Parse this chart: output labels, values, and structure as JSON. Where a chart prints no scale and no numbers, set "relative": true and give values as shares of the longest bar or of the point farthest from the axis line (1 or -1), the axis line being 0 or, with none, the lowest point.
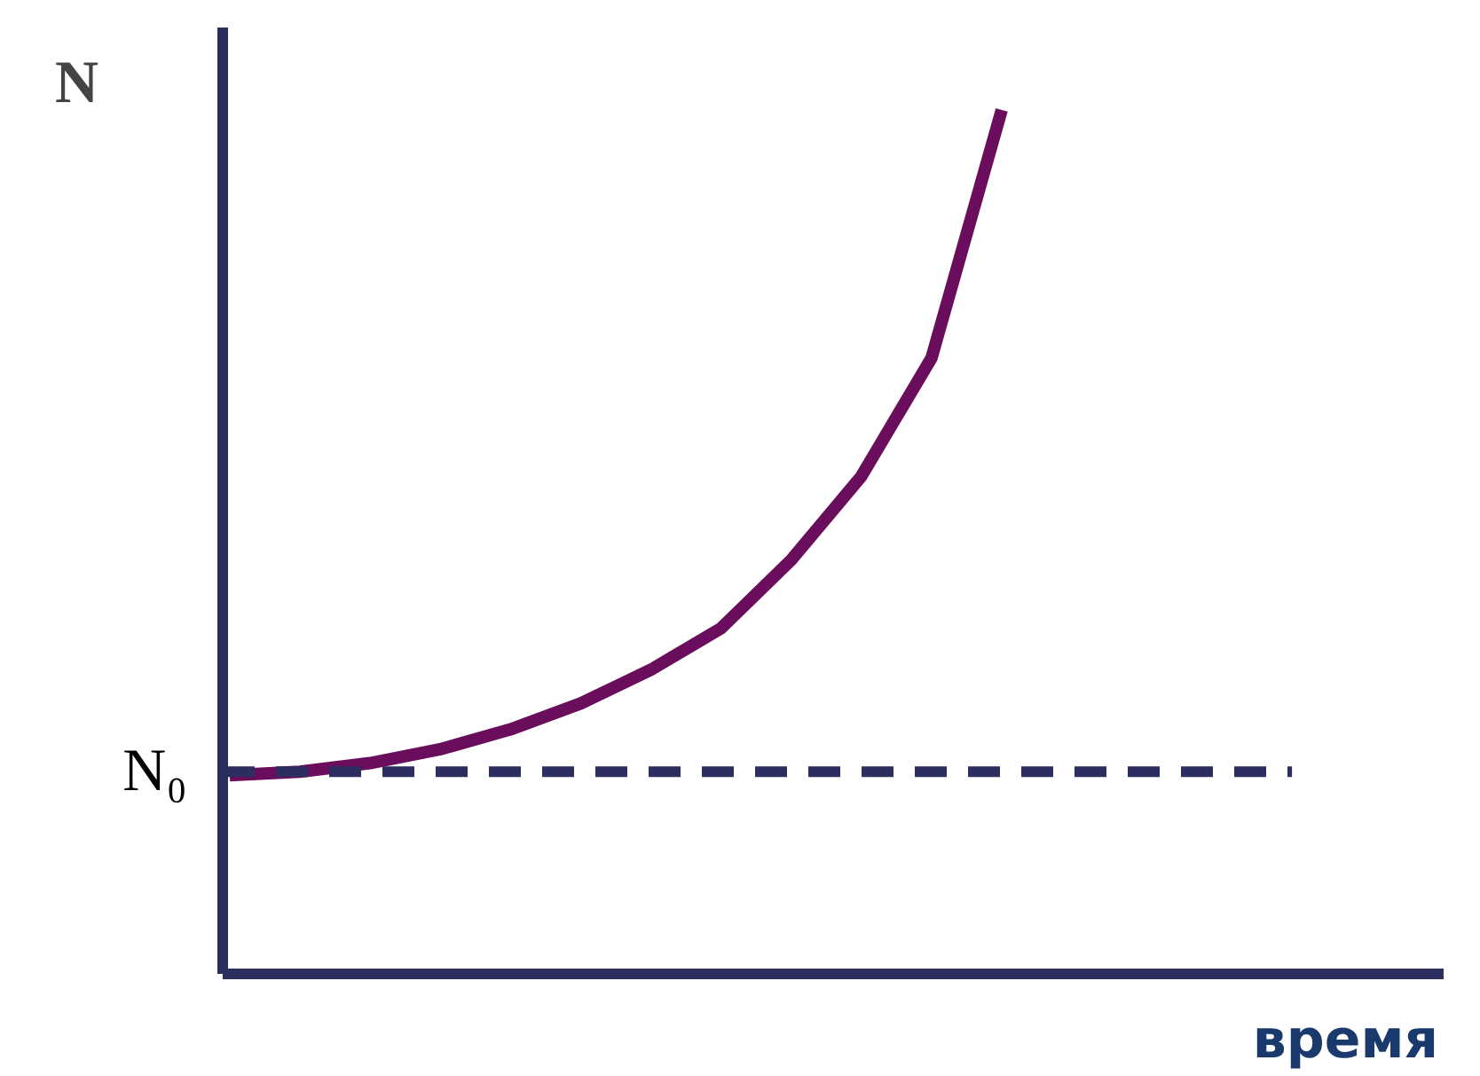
{
  "chart_data": {
    "type": "line",
    "relative": true,
    "xlabel": "время",
    "ylabel": "N",
    "categories": [
      null,
      null,
      null,
      null,
      null,
      null,
      null,
      null,
      null,
      null,
      null,
      null
    ],
    "series": [
      {
        "color": "#6a0d5c",
        "values": [
          0.23,
          0.234,
          0.244,
          0.26,
          0.283,
          0.313,
          0.352,
          0.4,
          0.479,
          0.576,
          0.713,
          1.0
        ]
      }
    ],
    "ref_lines": [
      {
        "axis": "y",
        "value": 0.234,
        "label": "N₀",
        "color": "#2b2e5e",
        "line_style": "dashed"
      }
    ]
  }
}
